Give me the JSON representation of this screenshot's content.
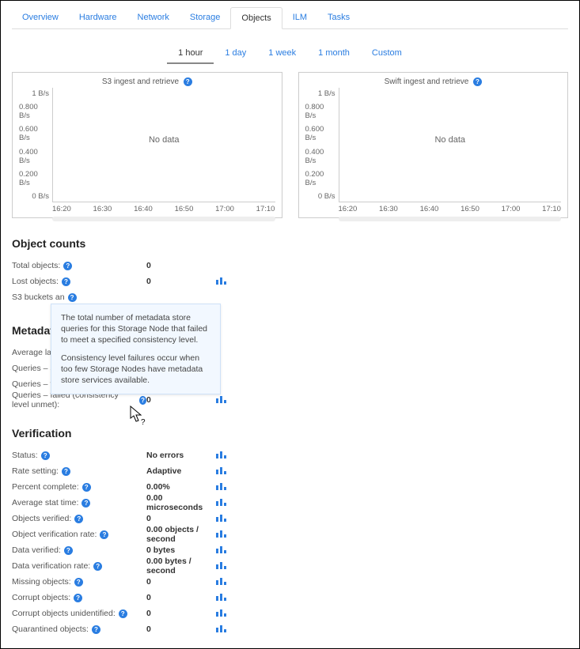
{
  "tabs": [
    "Overview",
    "Hardware",
    "Network",
    "Storage",
    "Objects",
    "ILM",
    "Tasks"
  ],
  "activeTab": "Objects",
  "timeTabs": [
    "1 hour",
    "1 day",
    "1 week",
    "1 month",
    "Custom"
  ],
  "activeTimeTab": "1 hour",
  "chartYTicks": [
    "1 B/s",
    "0.800 B/s",
    "0.600 B/s",
    "0.400 B/s",
    "0.200 B/s",
    "0 B/s"
  ],
  "chartXTicks": [
    "16:20",
    "16:30",
    "16:40",
    "16:50",
    "17:00",
    "17:10"
  ],
  "chartNoData": "No data",
  "chart1Title": "S3 ingest and retrieve",
  "chart2Title": "Swift ingest and retrieve",
  "objectCountsHeader": "Object counts",
  "objectCounts": [
    {
      "label": "Total objects:",
      "value": "0",
      "chart": false
    },
    {
      "label": "Lost objects:",
      "value": "0",
      "chart": true
    },
    {
      "label": "S3 buckets an",
      "value": "",
      "chart": false
    }
  ],
  "metadataHeader": "Metadat",
  "metadata": [
    {
      "label": "Average laten",
      "value": "",
      "chart": false
    },
    {
      "label": "Queries – succ",
      "value": "",
      "chart": false
    },
    {
      "label": "Queries – faile",
      "value": "",
      "chart": false
    },
    {
      "label": "Queries – failed (consistency level unmet):",
      "value": "0",
      "chart": true,
      "help": true
    }
  ],
  "verificationHeader": "Verification",
  "verification": [
    {
      "label": "Status:",
      "value": "No errors",
      "chart": true
    },
    {
      "label": "Rate setting:",
      "value": "Adaptive",
      "chart": true
    },
    {
      "label": "Percent complete:",
      "value": "0.00%",
      "chart": true
    },
    {
      "label": "Average stat time:",
      "value": "0.00 microseconds",
      "chart": true
    },
    {
      "label": "Objects verified:",
      "value": "0",
      "chart": true
    },
    {
      "label": "Object verification rate:",
      "value": "0.00 objects / second",
      "chart": true
    },
    {
      "label": "Data verified:",
      "value": "0 bytes",
      "chart": true
    },
    {
      "label": "Data verification rate:",
      "value": "0.00 bytes / second",
      "chart": true
    },
    {
      "label": "Missing objects:",
      "value": "0",
      "chart": true
    },
    {
      "label": "Corrupt objects:",
      "value": "0",
      "chart": true
    },
    {
      "label": "Corrupt objects unidentified:",
      "value": "0",
      "chart": true
    },
    {
      "label": "Quarantined objects:",
      "value": "0",
      "chart": true
    }
  ],
  "tooltip": {
    "p1": "The total number of metadata store queries for this Storage Node that failed to meet a specified consistency level.",
    "p2": "Consistency level failures occur when too few Storage Nodes have metadata store services available."
  }
}
